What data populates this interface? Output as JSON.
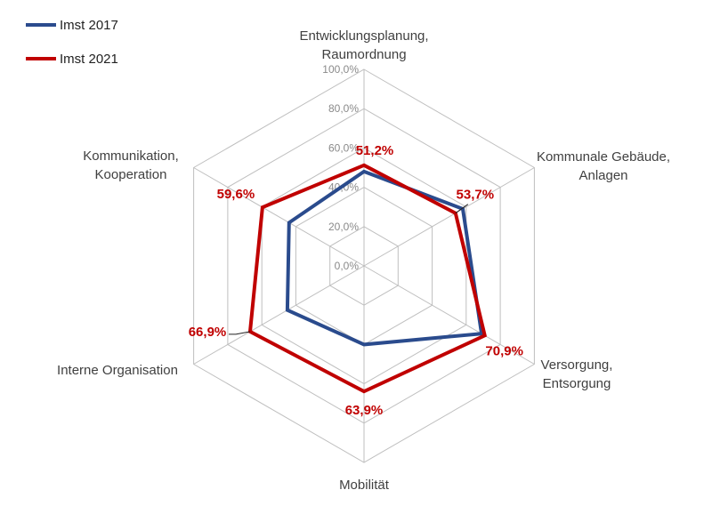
{
  "chart_data": {
    "type": "radar",
    "categories": [
      [
        "Entwicklungsplanung,",
        "Raumordnung"
      ],
      [
        "Kommunale Gebäude,",
        "Anlagen"
      ],
      [
        "Versorgung,",
        "Entsorgung"
      ],
      [
        "Mobilität"
      ],
      [
        "Interne Organisation"
      ],
      [
        "Kommunikation,",
        "Kooperation"
      ]
    ],
    "rlim": [
      0,
      100
    ],
    "ticks": [
      0,
      20,
      40,
      60,
      80,
      100
    ],
    "tick_labels": [
      "0,0%",
      "20,0%",
      "40,0%",
      "60,0%",
      "80,0%",
      "100,0%"
    ],
    "legend_position": "top-left",
    "series": [
      {
        "name": "Imst 2017",
        "color": "#2a4b8d",
        "values": [
          48,
          58,
          69,
          40,
          45,
          44
        ]
      },
      {
        "name": "Imst 2021",
        "color": "#c00000",
        "values": [
          51.2,
          53.7,
          70.9,
          63.9,
          66.9,
          59.6
        ],
        "data_labels": [
          "51,2%",
          "53,7%",
          "70,9%",
          "63,9%",
          "66,9%",
          "59,6%"
        ]
      }
    ]
  }
}
